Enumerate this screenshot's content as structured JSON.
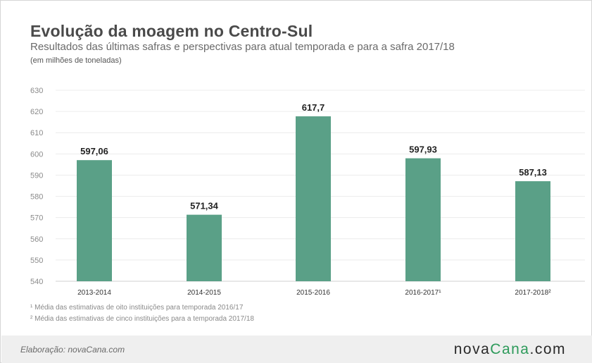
{
  "header": {
    "title": "Evolução da moagem no Centro-Sul",
    "subtitle": "Resultados das últimas safras e perspectivas para atual temporada e para a safra 2017/18",
    "unit": "(em milhões de toneladas)"
  },
  "chart_data": {
    "type": "bar",
    "categories": [
      "2013-2014",
      "2014-2015",
      "2015-2016",
      "2016-2017¹",
      "2017-2018²"
    ],
    "values": [
      597.06,
      571.34,
      617.7,
      597.93,
      587.13
    ],
    "value_labels": [
      "597,06",
      "571,34",
      "617,7",
      "597,93",
      "587,13"
    ],
    "y_ticks": [
      540,
      550,
      560,
      570,
      580,
      590,
      600,
      610,
      620,
      630
    ],
    "ylim": [
      540,
      630
    ],
    "grid": true,
    "bar_color": "#5aa087"
  },
  "notes": {
    "note1": "¹ Média das estimativas de oito instituições para temporada 2016/17",
    "note2": "² Média das estimativas de cinco instituições para a temporada 2017/18"
  },
  "footer": {
    "credit": "Elaboração: novaCana.com",
    "logo_main": "nova",
    "logo_accent": "Cana",
    "logo_suffix": ".com"
  }
}
